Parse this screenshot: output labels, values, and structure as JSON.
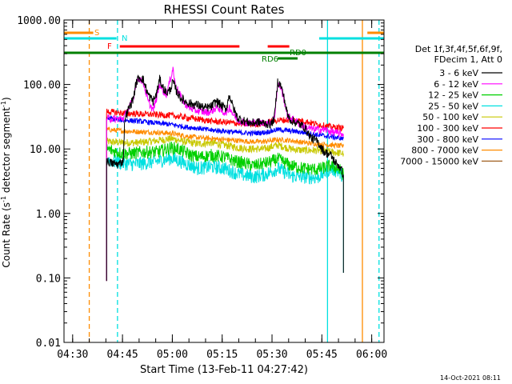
{
  "chart_data": {
    "type": "line",
    "title": "RHESSI Count Rates",
    "xlabel": "Start Time (13-Feb-11 04:27:42)",
    "ylabel": "Count Rate (s⁻¹ detector segment⁻¹)",
    "ylabel_main": "Count Rate (s",
    "ylabel_sup1": "-1",
    "ylabel_mid": " detector segment",
    "ylabel_sup2": "-1",
    "ylabel_end": ")",
    "yscale": "log",
    "ylim": [
      0.01,
      1000
    ],
    "xlim_minutes": [
      -0.3,
      96
    ],
    "x_ticks": [
      {
        "t": 2.3,
        "label": "04:30"
      },
      {
        "t": 17.3,
        "label": "04:45"
      },
      {
        "t": 32.3,
        "label": "05:00"
      },
      {
        "t": 47.3,
        "label": "05:15"
      },
      {
        "t": 62.3,
        "label": "05:30"
      },
      {
        "t": 77.3,
        "label": "05:45"
      },
      {
        "t": 92.3,
        "label": "06:00"
      }
    ],
    "y_ticks": [
      {
        "v": 0.01,
        "label": "0.01"
      },
      {
        "v": 0.1,
        "label": "0.10"
      },
      {
        "v": 1,
        "label": "1.00"
      },
      {
        "v": 10,
        "label": "10.00"
      },
      {
        "v": 100,
        "label": "100.00"
      },
      {
        "v": 1000,
        "label": "1000.00"
      }
    ],
    "legend": {
      "placement": "right",
      "header": [
        "Det 1f,3f,4f,5f,6f,9f,",
        "FDecim 1, Att 0"
      ]
    },
    "series": [
      {
        "name": "3 - 6 keV",
        "color": "#000000",
        "points": [
          [
            12.5,
            6.5
          ],
          [
            14,
            6
          ],
          [
            16,
            5.8
          ],
          [
            17.5,
            6.5
          ],
          [
            18,
            30
          ],
          [
            19,
            40
          ],
          [
            20.5,
            60
          ],
          [
            21.5,
            110
          ],
          [
            22.5,
            130
          ],
          [
            23.5,
            120
          ],
          [
            25,
            70
          ],
          [
            26.5,
            55
          ],
          [
            27.5,
            70
          ],
          [
            28.5,
            120
          ],
          [
            29.5,
            90
          ],
          [
            30.5,
            75
          ],
          [
            31.5,
            80
          ],
          [
            32.5,
            110
          ],
          [
            33.5,
            80
          ],
          [
            34.5,
            65
          ],
          [
            36,
            55
          ],
          [
            38,
            50
          ],
          [
            40,
            48
          ],
          [
            42,
            43
          ],
          [
            44,
            45
          ],
          [
            45.5,
            55
          ],
          [
            46.5,
            50
          ],
          [
            47.5,
            45
          ],
          [
            48.5,
            42
          ],
          [
            49.5,
            70
          ],
          [
            50.5,
            45
          ],
          [
            52,
            30
          ],
          [
            54,
            27
          ],
          [
            56,
            25
          ],
          [
            58,
            26
          ],
          [
            60,
            25
          ],
          [
            62,
            24
          ],
          [
            63,
            30
          ],
          [
            64,
            110
          ],
          [
            65,
            95
          ],
          [
            66,
            60
          ],
          [
            67,
            33
          ],
          [
            68,
            28
          ],
          [
            70,
            25
          ],
          [
            72,
            22
          ],
          [
            74,
            15
          ],
          [
            76,
            13
          ],
          [
            78,
            9
          ],
          [
            80,
            8
          ],
          [
            81.5,
            6
          ],
          [
            82.5,
            5.5
          ],
          [
            83.8,
            4
          ]
        ]
      },
      {
        "name": "6 - 12 keV",
        "color": "#ff00ff",
        "points": [
          [
            12.5,
            30
          ],
          [
            15,
            29
          ],
          [
            17.5,
            30
          ],
          [
            19,
            40
          ],
          [
            20.5,
            60
          ],
          [
            21.5,
            110
          ],
          [
            22.5,
            125
          ],
          [
            23.5,
            110
          ],
          [
            25,
            55
          ],
          [
            26.5,
            40
          ],
          [
            27.5,
            60
          ],
          [
            28.5,
            100
          ],
          [
            29.5,
            80
          ],
          [
            30.5,
            70
          ],
          [
            31.5,
            110
          ],
          [
            32.5,
            180
          ],
          [
            33,
            110
          ],
          [
            34,
            80
          ],
          [
            35.5,
            55
          ],
          [
            37,
            45
          ],
          [
            39,
            40
          ],
          [
            41,
            38
          ],
          [
            43,
            37
          ],
          [
            44.5,
            40
          ],
          [
            46,
            45
          ],
          [
            47.5,
            37
          ],
          [
            49,
            38
          ],
          [
            49.5,
            45
          ],
          [
            50.5,
            35
          ],
          [
            52,
            28
          ],
          [
            55,
            25
          ],
          [
            58,
            26
          ],
          [
            61,
            25
          ],
          [
            63,
            30
          ],
          [
            64,
            100
          ],
          [
            65,
            90
          ],
          [
            66,
            55
          ],
          [
            67,
            32
          ],
          [
            69,
            28
          ],
          [
            72,
            22
          ],
          [
            75,
            20
          ],
          [
            78,
            20
          ],
          [
            81,
            18
          ],
          [
            83.8,
            17
          ]
        ]
      },
      {
        "name": "12 - 25 keV",
        "color": "#00d000",
        "points": [
          [
            12.5,
            10
          ],
          [
            14,
            9.5
          ],
          [
            17.5,
            8.5
          ],
          [
            20,
            8.5
          ],
          [
            24,
            9
          ],
          [
            28,
            9
          ],
          [
            32,
            10.5
          ],
          [
            34,
            10
          ],
          [
            36,
            9
          ],
          [
            38,
            8
          ],
          [
            40,
            7.5
          ],
          [
            44,
            8
          ],
          [
            48,
            7.5
          ],
          [
            51,
            6.5
          ],
          [
            54,
            6
          ],
          [
            57,
            5.5
          ],
          [
            60,
            6
          ],
          [
            62,
            6.3
          ],
          [
            64,
            7
          ],
          [
            66,
            6.2
          ],
          [
            68,
            5.5
          ],
          [
            72,
            5
          ],
          [
            76,
            4.8
          ],
          [
            80,
            5.5
          ],
          [
            82,
            5
          ],
          [
            83.8,
            4
          ]
        ]
      },
      {
        "name": "25 - 50 keV",
        "color": "#00e0e0",
        "points": [
          [
            12.5,
            7
          ],
          [
            14,
            6.5
          ],
          [
            17.5,
            6
          ],
          [
            20,
            5.8
          ],
          [
            24,
            6
          ],
          [
            28,
            6.5
          ],
          [
            32,
            7.2
          ],
          [
            34,
            6.7
          ],
          [
            36,
            6
          ],
          [
            38,
            5.5
          ],
          [
            40,
            5
          ],
          [
            44,
            5.3
          ],
          [
            48,
            5
          ],
          [
            51,
            4.3
          ],
          [
            54,
            3.9
          ],
          [
            57,
            3.7
          ],
          [
            60,
            4
          ],
          [
            62,
            4.4
          ],
          [
            64,
            5
          ],
          [
            66,
            4.4
          ],
          [
            68,
            3.8
          ],
          [
            72,
            3.7
          ],
          [
            76,
            3.6
          ],
          [
            80,
            5
          ],
          [
            82,
            4.5
          ],
          [
            83.8,
            3.8
          ]
        ]
      },
      {
        "name": "50 - 100 keV",
        "color": "#c8c800",
        "points": [
          [
            12.5,
            13
          ],
          [
            17.5,
            12.5
          ],
          [
            22,
            12.5
          ],
          [
            28,
            13.5
          ],
          [
            32,
            14.5
          ],
          [
            36,
            13
          ],
          [
            40,
            12
          ],
          [
            44,
            12.5
          ],
          [
            48,
            11.5
          ],
          [
            52,
            10.5
          ],
          [
            56,
            10
          ],
          [
            60,
            10
          ],
          [
            64,
            11.5
          ],
          [
            68,
            10
          ],
          [
            72,
            9.5
          ],
          [
            76,
            9.5
          ],
          [
            80,
            9
          ],
          [
            83.8,
            8.5
          ]
        ]
      },
      {
        "name": "100 - 300 keV",
        "color": "#ff0000",
        "points": [
          [
            12.5,
            38
          ],
          [
            17.5,
            36
          ],
          [
            22,
            35
          ],
          [
            28,
            34
          ],
          [
            32,
            33
          ],
          [
            36,
            31
          ],
          [
            40,
            29
          ],
          [
            44,
            27
          ],
          [
            48,
            26
          ],
          [
            52,
            25
          ],
          [
            56,
            24
          ],
          [
            60,
            25
          ],
          [
            64,
            28
          ],
          [
            68,
            28
          ],
          [
            72,
            27
          ],
          [
            76,
            24
          ],
          [
            80,
            22
          ],
          [
            83.8,
            21
          ]
        ]
      },
      {
        "name": "300 - 800 keV",
        "color": "#0000ff",
        "points": [
          [
            12.5,
            30
          ],
          [
            17.5,
            28
          ],
          [
            22,
            27
          ],
          [
            28,
            25
          ],
          [
            32,
            24
          ],
          [
            36,
            22
          ],
          [
            40,
            21
          ],
          [
            44,
            19.5
          ],
          [
            48,
            19
          ],
          [
            52,
            18
          ],
          [
            56,
            17.5
          ],
          [
            60,
            18
          ],
          [
            64,
            20
          ],
          [
            68,
            19
          ],
          [
            72,
            18
          ],
          [
            76,
            16.5
          ],
          [
            80,
            15.5
          ],
          [
            83.8,
            14.5
          ]
        ]
      },
      {
        "name": "800 - 7000 keV",
        "color": "#ff8c00",
        "points": [
          [
            12.5,
            20
          ],
          [
            17.5,
            19
          ],
          [
            22,
            18.5
          ],
          [
            28,
            18
          ],
          [
            32,
            17.5
          ],
          [
            36,
            16
          ],
          [
            40,
            15
          ],
          [
            44,
            14.5
          ],
          [
            48,
            14
          ],
          [
            52,
            13.5
          ],
          [
            56,
            13
          ],
          [
            60,
            13
          ],
          [
            64,
            14
          ],
          [
            68,
            13.5
          ],
          [
            72,
            12.5
          ],
          [
            76,
            12
          ],
          [
            80,
            11.5
          ],
          [
            83.8,
            11
          ]
        ]
      },
      {
        "name": "7000 - 15000 keV",
        "color": "#a06020",
        "points": []
      }
    ],
    "annotations": {
      "bars": [
        {
          "label": "S",
          "color": "#ff8c00",
          "level": 1,
          "segments": [
            [
              -0.3,
              8.5
            ],
            [
              91,
              96
            ]
          ]
        },
        {
          "label": "N",
          "color": "#00e0e0",
          "level": 2,
          "segments": [
            [
              -0.3,
              15.5
            ],
            [
              76.5,
              96
            ]
          ]
        },
        {
          "label": "F",
          "color": "#ff0000",
          "level": 3,
          "segments": [
            [
              16.5,
              52.5
            ],
            [
              61,
              67.5
            ]
          ]
        },
        {
          "label": "RD0",
          "color": "#008000",
          "level": 4,
          "segments": [
            [
              -0.3,
              96
            ]
          ]
        },
        {
          "label": "RD6",
          "color": "#008000",
          "level": 5,
          "segments": [
            [
              64,
              70
            ]
          ]
        }
      ],
      "vlines": [
        {
          "t": 7.3,
          "color": "#ff8c00",
          "style": "dashed"
        },
        {
          "t": 15.8,
          "color": "#00e0e0",
          "style": "dashed"
        },
        {
          "t": 79.0,
          "color": "#00e0e0",
          "style": "solid"
        },
        {
          "t": 89.5,
          "color": "#ff8c00",
          "style": "solid"
        },
        {
          "t": 94.5,
          "color": "#00e0e0",
          "style": "dashed"
        }
      ]
    },
    "footer": "14-Oct-2021 08:11"
  }
}
